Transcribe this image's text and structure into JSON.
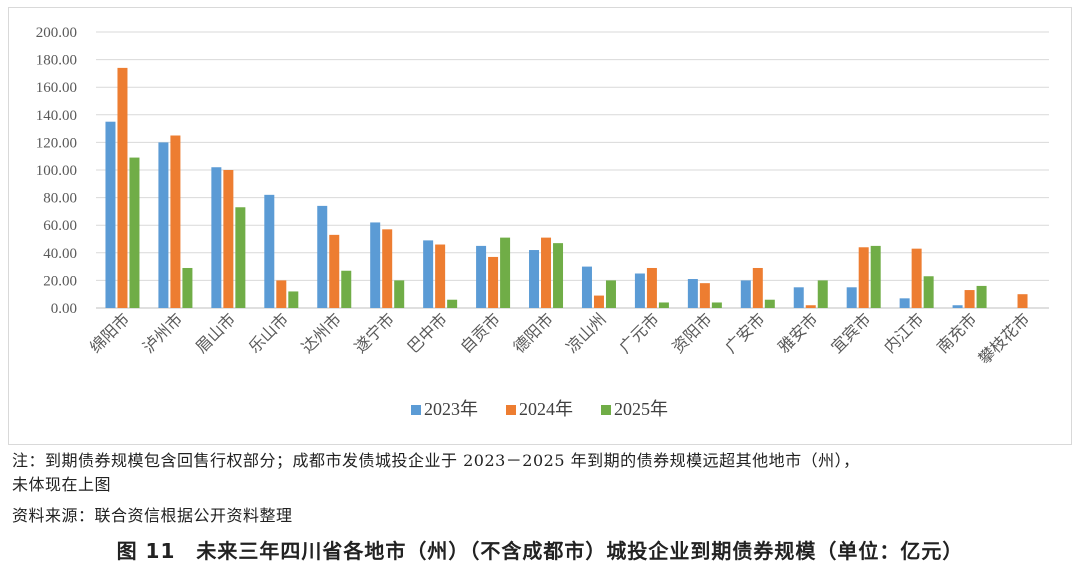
{
  "chart_data": {
    "type": "bar",
    "unit": "亿元",
    "ylim": [
      0,
      200
    ],
    "ytick_labels": [
      "0.00",
      "20.00",
      "40.00",
      "60.00",
      "80.00",
      "100.00",
      "120.00",
      "140.00",
      "160.00",
      "180.00",
      "200.00"
    ],
    "grid": true,
    "legend_position": "bottom",
    "categories": [
      "绵阳市",
      "泸州市",
      "眉山市",
      "乐山市",
      "达州市",
      "遂宁市",
      "巴中市",
      "自贡市",
      "德阳市",
      "凉山州",
      "广元市",
      "资阳市",
      "广安市",
      "雅安市",
      "宜宾市",
      "内江市",
      "南充市",
      "攀枝花市"
    ],
    "series": [
      {
        "name": "2023年",
        "color": "#5B9BD5",
        "values": [
          135,
          120,
          102,
          82,
          74,
          62,
          49,
          45,
          42,
          30,
          25,
          21,
          20,
          15,
          15,
          7,
          2,
          0
        ]
      },
      {
        "name": "2024年",
        "color": "#ED7D31",
        "values": [
          174,
          125,
          100,
          20,
          53,
          57,
          46,
          37,
          51,
          9,
          29,
          18,
          29,
          2,
          44,
          43,
          13,
          10
        ]
      },
      {
        "name": "2025年",
        "color": "#70AD47",
        "values": [
          109,
          29,
          73,
          12,
          27,
          20,
          6,
          51,
          47,
          20,
          4,
          4,
          6,
          20,
          45,
          23,
          16,
          0
        ]
      }
    ]
  },
  "notes": {
    "line1": "注：到期债券规模包含回售行权部分；成都市发债城投企业于 2023－2025 年到期的债券规模远超其他地市（州），",
    "line2": "未体现在上图",
    "source": "资料来源：联合资信根据公开资料整理"
  },
  "caption": "图 11　未来三年四川省各地市（州）（不含成都市）城投企业到期债券规模（单位：亿元）"
}
